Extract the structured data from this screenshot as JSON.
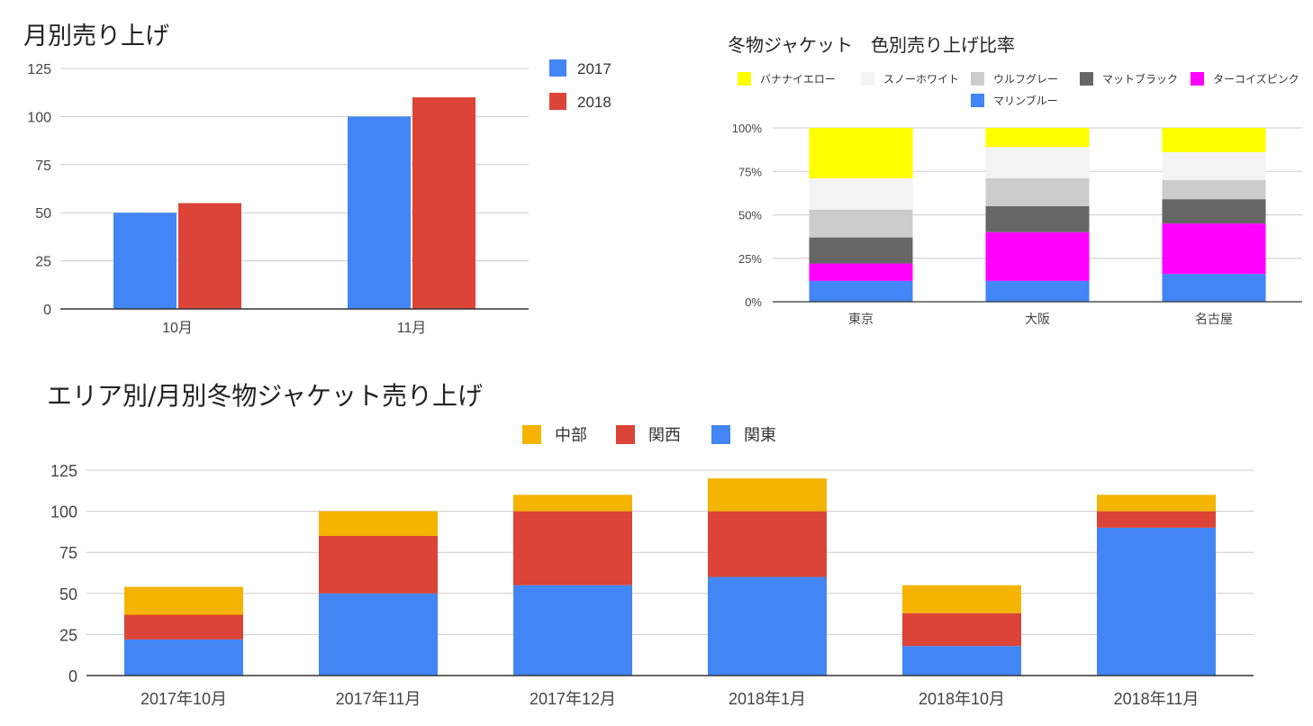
{
  "chart_data": [
    {
      "type": "bar",
      "title": "月別売り上げ",
      "categories": [
        "10月",
        "11月"
      ],
      "series": [
        {
          "name": "2017",
          "color": "#4285f4",
          "values": [
            50,
            100
          ]
        },
        {
          "name": "2018",
          "color": "#db4437",
          "values": [
            55,
            110
          ]
        }
      ],
      "ylim": [
        0,
        125
      ],
      "yticks": [
        "0",
        "25",
        "50",
        "75",
        "100",
        "125"
      ],
      "legend": "right",
      "grid": true
    },
    {
      "type": "bar",
      "stacked": "percent",
      "title": "冬物ジャケット　色別売り上げ比率",
      "categories": [
        "東京",
        "大阪",
        "名古屋"
      ],
      "series": [
        {
          "name": "マリンブルー",
          "color": "#4285f4",
          "values": [
            12,
            12,
            16
          ]
        },
        {
          "name": "ターコイズピンク",
          "color": "#ff00ff",
          "values": [
            10,
            28,
            29
          ]
        },
        {
          "name": "マットブラック",
          "color": "#666666",
          "values": [
            15,
            15,
            14
          ]
        },
        {
          "name": "ウルフグレー",
          "color": "#cccccc",
          "values": [
            16,
            16,
            11
          ]
        },
        {
          "name": "スノーホワイト",
          "color": "#f3f3f3",
          "values": [
            18,
            18,
            16
          ]
        },
        {
          "name": "バナナイエロー",
          "color": "#ffff00",
          "values": [
            29,
            11,
            14
          ]
        }
      ],
      "legend_order": [
        "バナナイエロー",
        "スノーホワイト",
        "ウルフグレー",
        "マットブラック",
        "ターコイズピンク",
        "マリンブルー"
      ],
      "ylim": [
        0,
        100
      ],
      "yticks": [
        "0%",
        "25%",
        "50%",
        "75%",
        "100%"
      ],
      "legend": "top",
      "grid": true
    },
    {
      "type": "bar",
      "stacked": "normal",
      "title": "エリア別/月別冬物ジャケット売り上げ",
      "categories": [
        "2017年10月",
        "2017年11月",
        "2017年12月",
        "2018年1月",
        "2018年10月",
        "2018年11月"
      ],
      "series": [
        {
          "name": "関東",
          "color": "#4285f4",
          "values": [
            22,
            50,
            55,
            60,
            18,
            90
          ]
        },
        {
          "name": "関西",
          "color": "#db4437",
          "values": [
            15,
            35,
            45,
            40,
            20,
            10
          ]
        },
        {
          "name": "中部",
          "color": "#f4b400",
          "values": [
            17,
            15,
            10,
            20,
            17,
            10
          ]
        }
      ],
      "legend_order": [
        "中部",
        "関西",
        "関東"
      ],
      "ylim": [
        0,
        125
      ],
      "yticks": [
        "0",
        "25",
        "50",
        "75",
        "100",
        "125"
      ],
      "legend": "top",
      "grid": true
    }
  ]
}
